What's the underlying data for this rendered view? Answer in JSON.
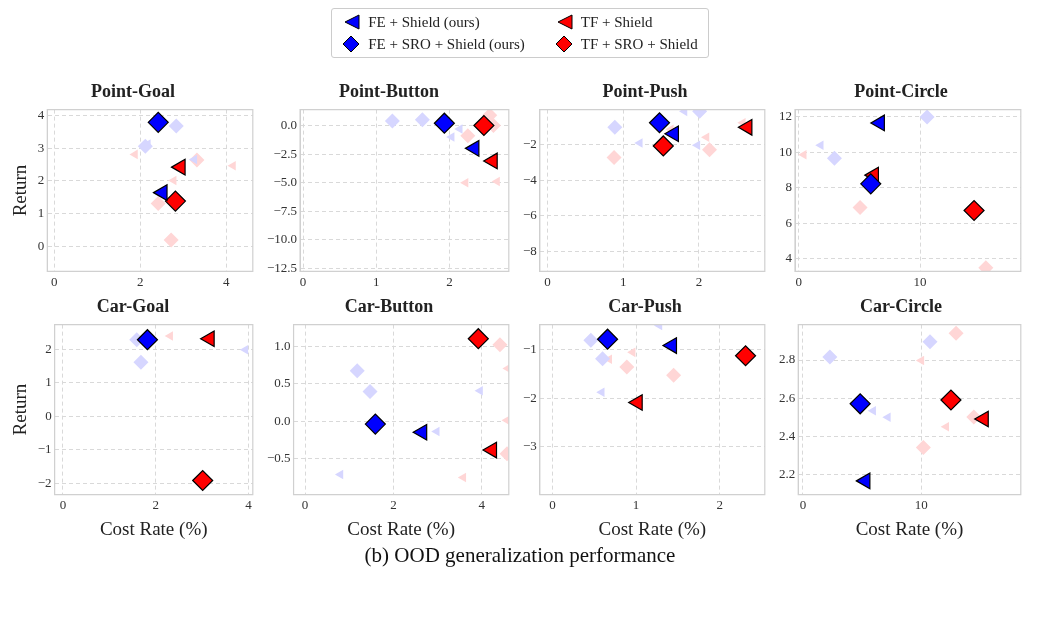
{
  "chart_data": [
    {
      "type": "scatter",
      "title": "Point-Goal",
      "ylabel": "Return",
      "legend": "top",
      "grid": true,
      "annotations": [
        "(b) OOD generalization performance"
      ],
      "xlim": [
        -0.16,
        4.62
      ],
      "ylim": [
        -0.77,
        4.18
      ],
      "xticks": [
        0,
        2,
        4
      ],
      "yticks": [
        0,
        1,
        2,
        3,
        4
      ],
      "series": [
        {
          "name": "FE + Shield (ours)",
          "color": "#0000ff",
          "marker": "triangle",
          "x": [
            2.52
          ],
          "values": [
            1.64
          ]
        },
        {
          "name": "FE + SRO + Shield (ours)",
          "color": "#0000ff",
          "marker": "diamond",
          "x": [
            2.42
          ],
          "values": [
            3.79
          ]
        },
        {
          "name": "TF + Shield",
          "color": "#ff0000",
          "marker": "triangle",
          "x": [
            2.94
          ],
          "values": [
            2.42
          ]
        },
        {
          "name": "TF + SRO + Shield",
          "color": "#ff0000",
          "marker": "diamond",
          "x": [
            2.82
          ],
          "values": [
            1.38
          ]
        },
        {
          "color": "#d6d6ff",
          "marker": "triangle",
          "x": [
            2.18,
            3.26
          ],
          "values": [
            3.13,
            2.65
          ]
        },
        {
          "color": "#d6d6ff",
          "marker": "diamond",
          "x": [
            2.12,
            2.84
          ],
          "values": [
            3.06,
            3.68
          ]
        },
        {
          "color": "#ffd6d6",
          "marker": "triangle",
          "x": [
            1.88,
            2.78,
            4.16
          ],
          "values": [
            2.81,
            2.01,
            2.46
          ]
        },
        {
          "color": "#ffd6d6",
          "marker": "diamond",
          "x": [
            2.42,
            2.72,
            3.32
          ],
          "values": [
            1.31,
            0.19,
            2.64
          ]
        }
      ]
    },
    {
      "type": "scatter",
      "title": "Point-Button",
      "grid": true,
      "xlim": [
        -0.04,
        2.81
      ],
      "ylim": [
        -12.76,
        1.39
      ],
      "xticks": [
        0,
        1,
        2
      ],
      "yticks": [
        {
          "value": 0,
          "label": "0.0"
        },
        {
          "value": -2.5,
          "label": "−2.5"
        },
        {
          "value": -5,
          "label": "−5.0"
        },
        {
          "value": -7.5,
          "label": "−7.5"
        },
        {
          "value": -10,
          "label": "−10.0"
        },
        {
          "value": -12.5,
          "label": "−12.5"
        }
      ],
      "series": [
        {
          "color": "#0000ff",
          "marker": "triangle",
          "x": [
            2.34
          ],
          "values": [
            -2.0
          ]
        },
        {
          "color": "#0000ff",
          "marker": "diamond",
          "x": [
            1.93
          ],
          "values": [
            0.2
          ]
        },
        {
          "color": "#ff0000",
          "marker": "triangle",
          "x": [
            2.59
          ],
          "values": [
            -3.1
          ]
        },
        {
          "color": "#ff0000",
          "marker": "diamond",
          "x": [
            2.47
          ],
          "values": [
            0.0
          ]
        },
        {
          "color": "#d6d6ff",
          "marker": "triangle",
          "x": [
            2.14,
            2.03
          ],
          "values": [
            -0.3,
            -1.0
          ]
        },
        {
          "color": "#d6d6ff",
          "marker": "diamond",
          "x": [
            1.22,
            1.63
          ],
          "values": [
            0.4,
            0.5
          ]
        },
        {
          "color": "#ffd6d6",
          "marker": "triangle",
          "x": [
            2.22,
            2.65
          ],
          "values": [
            -5.0,
            -4.9
          ]
        },
        {
          "color": "#ffd6d6",
          "marker": "diamond",
          "x": [
            2.25,
            2.55,
            2.6
          ],
          "values": [
            -0.9,
            0.9,
            0.0
          ]
        }
      ]
    },
    {
      "type": "scatter",
      "title": "Point-Push",
      "grid": true,
      "xlim": [
        -0.1,
        2.87
      ],
      "ylim": [
        -9.14,
        -0.02
      ],
      "xticks": [
        0,
        1,
        2
      ],
      "yticks": [
        {
          "value": -2,
          "label": "−2"
        },
        {
          "value": -4,
          "label": "−4"
        },
        {
          "value": -6,
          "label": "−6"
        },
        {
          "value": -8,
          "label": "−8"
        }
      ],
      "series": [
        {
          "color": "#0000ff",
          "marker": "triangle",
          "x": [
            1.67
          ],
          "values": [
            -1.38
          ]
        },
        {
          "color": "#0000ff",
          "marker": "diamond",
          "x": [
            1.48
          ],
          "values": [
            -0.76
          ]
        },
        {
          "color": "#ff0000",
          "marker": "triangle",
          "x": [
            2.64
          ],
          "values": [
            -1.02
          ]
        },
        {
          "color": "#ff0000",
          "marker": "diamond",
          "x": [
            1.53
          ],
          "values": [
            -2.07
          ]
        },
        {
          "color": "#d6d6ff",
          "marker": "triangle",
          "x": [
            1.81,
            1.22,
            1.98
          ],
          "values": [
            -0.12,
            -1.9,
            -2.03
          ]
        },
        {
          "color": "#d6d6ff",
          "marker": "diamond",
          "x": [
            0.89,
            2.01
          ],
          "values": [
            -1.02,
            -0.12
          ]
        },
        {
          "color": "#ffd6d6",
          "marker": "triangle",
          "x": [
            2.1,
            2.58,
            1.63
          ],
          "values": [
            -1.58,
            -0.76,
            -1.13
          ]
        },
        {
          "color": "#ffd6d6",
          "marker": "diamond",
          "x": [
            0.88,
            2.14
          ],
          "values": [
            -2.72,
            -2.28
          ]
        }
      ]
    },
    {
      "type": "scatter",
      "title": "Point-Circle",
      "grid": true,
      "xlim": [
        -0.3,
        18.3
      ],
      "ylim": [
        3.3,
        12.41
      ],
      "xticks": [
        0,
        10
      ],
      "yticks": [
        4,
        6,
        8,
        10,
        12
      ],
      "series": [
        {
          "color": "#0000ff",
          "marker": "triangle",
          "x": [
            6.69
          ],
          "values": [
            11.66
          ]
        },
        {
          "color": "#0000ff",
          "marker": "diamond",
          "x": [
            5.94
          ],
          "values": [
            8.23
          ]
        },
        {
          "color": "#ff0000",
          "marker": "triangle",
          "x": [
            6.2
          ],
          "values": [
            8.72
          ]
        },
        {
          "color": "#ff0000",
          "marker": "diamond",
          "x": [
            14.45
          ],
          "values": [
            6.73
          ]
        },
        {
          "color": "#d6d6ff",
          "marker": "triangle",
          "x": [
            1.82
          ],
          "values": [
            10.4
          ]
        },
        {
          "color": "#d6d6ff",
          "marker": "diamond",
          "x": [
            10.58,
            2.95
          ],
          "values": [
            12.0,
            9.67
          ]
        },
        {
          "color": "#ffd6d6",
          "marker": "triangle",
          "x": [
            0.42
          ],
          "values": [
            9.87
          ]
        },
        {
          "color": "#ffd6d6",
          "marker": "diamond",
          "x": [
            5.06,
            15.42
          ],
          "values": [
            6.9,
            3.5
          ]
        }
      ]
    },
    {
      "type": "scatter",
      "title": "Car-Goal",
      "xlabel": "Cost Rate (%)",
      "ylabel": "Return",
      "grid": true,
      "xlim": [
        -0.18,
        4.09
      ],
      "ylim": [
        -2.33,
        2.73
      ],
      "xticks": [
        0,
        2,
        4
      ],
      "yticks": [
        {
          "value": -2,
          "label": "−2"
        },
        {
          "value": -1,
          "label": "−1"
        },
        0,
        1,
        2
      ],
      "series": [
        {
          "color": "#0000ff",
          "marker": "diamond",
          "x": [
            1.82
          ],
          "values": [
            2.28
          ]
        },
        {
          "color": "#ff0000",
          "marker": "triangle",
          "x": [
            3.16
          ],
          "values": [
            2.31
          ]
        },
        {
          "color": "#ff0000",
          "marker": "diamond",
          "x": [
            3.01
          ],
          "values": [
            -1.91
          ]
        },
        {
          "color": "#d6d6ff",
          "marker": "triangle",
          "x": [
            3.93
          ],
          "values": [
            1.98
          ]
        },
        {
          "color": "#d6d6ff",
          "marker": "diamond",
          "x": [
            1.59,
            1.68
          ],
          "values": [
            2.28,
            1.61
          ]
        },
        {
          "color": "#ffd6d6",
          "marker": "triangle",
          "x": [
            2.31
          ],
          "values": [
            2.39
          ]
        }
      ]
    },
    {
      "type": "scatter",
      "title": "Car-Button",
      "xlabel": "Cost Rate (%)",
      "grid": true,
      "xlim": [
        -0.26,
        4.61
      ],
      "ylim": [
        -0.99,
        1.3
      ],
      "xticks": [
        0,
        2,
        4
      ],
      "yticks": [
        {
          "value": -0.5,
          "label": "−0.5"
        },
        {
          "value": 0,
          "label": "0.0"
        },
        {
          "value": 0.5,
          "label": "0.5"
        },
        {
          "value": 1,
          "label": "1.0"
        }
      ],
      "series": [
        {
          "color": "#0000ff",
          "marker": "triangle",
          "x": [
            2.65
          ],
          "values": [
            -0.15
          ]
        },
        {
          "color": "#0000ff",
          "marker": "diamond",
          "x": [
            1.59
          ],
          "values": [
            -0.04
          ]
        },
        {
          "color": "#ff0000",
          "marker": "triangle",
          "x": [
            4.23
          ],
          "values": [
            -0.39
          ]
        },
        {
          "color": "#ff0000",
          "marker": "diamond",
          "x": [
            3.92
          ],
          "values": [
            1.11
          ]
        },
        {
          "color": "#d6d6ff",
          "marker": "triangle",
          "x": [
            3.96,
            2.98,
            0.8
          ],
          "values": [
            0.41,
            -0.14,
            -0.72
          ]
        },
        {
          "color": "#d6d6ff",
          "marker": "diamond",
          "x": [
            1.18,
            1.47
          ],
          "values": [
            0.68,
            0.4
          ]
        },
        {
          "color": "#ffd6d6",
          "marker": "triangle",
          "x": [
            3.58,
            4.57,
            4.59
          ],
          "values": [
            -0.76,
            0.01,
            0.71
          ]
        },
        {
          "color": "#ffd6d6",
          "marker": "diamond",
          "x": [
            4.41,
            4.57
          ],
          "values": [
            1.03,
            -0.44
          ]
        }
      ]
    },
    {
      "type": "scatter",
      "title": "Car-Push",
      "xlabel": "Cost Rate (%)",
      "grid": true,
      "xlim": [
        -0.15,
        2.54
      ],
      "ylim": [
        -3.98,
        -0.49
      ],
      "xticks": [
        0,
        1,
        2
      ],
      "yticks": [
        {
          "value": -1,
          "label": "−1"
        },
        {
          "value": -2,
          "label": "−2"
        },
        {
          "value": -3,
          "label": "−3"
        }
      ],
      "series": [
        {
          "color": "#0000ff",
          "marker": "triangle",
          "x": [
            1.43
          ],
          "values": [
            -0.92
          ]
        },
        {
          "color": "#0000ff",
          "marker": "diamond",
          "x": [
            0.66
          ],
          "values": [
            -0.79
          ]
        },
        {
          "color": "#ff0000",
          "marker": "triangle",
          "x": [
            1.02
          ],
          "values": [
            -2.09
          ]
        },
        {
          "color": "#ff0000",
          "marker": "diamond",
          "x": [
            2.31
          ],
          "values": [
            -1.13
          ]
        },
        {
          "color": "#d6d6ff",
          "marker": "triangle",
          "x": [
            1.28,
            0.59
          ],
          "values": [
            -0.51,
            -1.88
          ]
        },
        {
          "color": "#d6d6ff",
          "marker": "diamond",
          "x": [
            0.46,
            0.6
          ],
          "values": [
            -0.81,
            -1.19
          ]
        },
        {
          "color": "#ffd6d6",
          "marker": "triangle",
          "x": [
            0.68,
            0.96
          ],
          "values": [
            -1.2,
            -1.06
          ]
        },
        {
          "color": "#ffd6d6",
          "marker": "diamond",
          "x": [
            0.89,
            1.45
          ],
          "values": [
            -1.36,
            -1.53
          ]
        }
      ]
    },
    {
      "type": "scatter",
      "title": "Car-Circle",
      "xlabel": "Cost Rate (%)",
      "grid": true,
      "xlim": [
        -0.4,
        18.4
      ],
      "ylim": [
        2.093,
        2.986
      ],
      "xticks": [
        0,
        10
      ],
      "yticks": [
        {
          "value": 2.2,
          "label": "2.2"
        },
        {
          "value": 2.4,
          "label": "2.4"
        },
        {
          "value": 2.6,
          "label": "2.6"
        },
        {
          "value": 2.8,
          "label": "2.8"
        }
      ],
      "series": [
        {
          "color": "#0000ff",
          "marker": "triangle",
          "x": [
            5.27
          ],
          "values": [
            2.165
          ]
        },
        {
          "color": "#0000ff",
          "marker": "diamond",
          "x": [
            4.83
          ],
          "values": [
            2.57
          ]
        },
        {
          "color": "#ff0000",
          "marker": "triangle",
          "x": [
            15.27
          ],
          "values": [
            2.49
          ]
        },
        {
          "color": "#ff0000",
          "marker": "diamond",
          "x": [
            12.5
          ],
          "values": [
            2.59
          ]
        },
        {
          "color": "#d6d6ff",
          "marker": "triangle",
          "x": [
            5.93,
            7.17
          ],
          "values": [
            2.534,
            2.499
          ]
        },
        {
          "color": "#d6d6ff",
          "marker": "diamond",
          "x": [
            2.27,
            10.73
          ],
          "values": [
            2.816,
            2.896
          ]
        },
        {
          "color": "#ffd6d6",
          "marker": "triangle",
          "x": [
            10.0,
            12.1
          ],
          "values": [
            2.797,
            2.45
          ]
        },
        {
          "color": "#ffd6d6",
          "marker": "diamond",
          "x": [
            12.93,
            10.17,
            14.43
          ],
          "values": [
            2.94,
            2.34,
            2.5
          ]
        }
      ]
    }
  ]
}
